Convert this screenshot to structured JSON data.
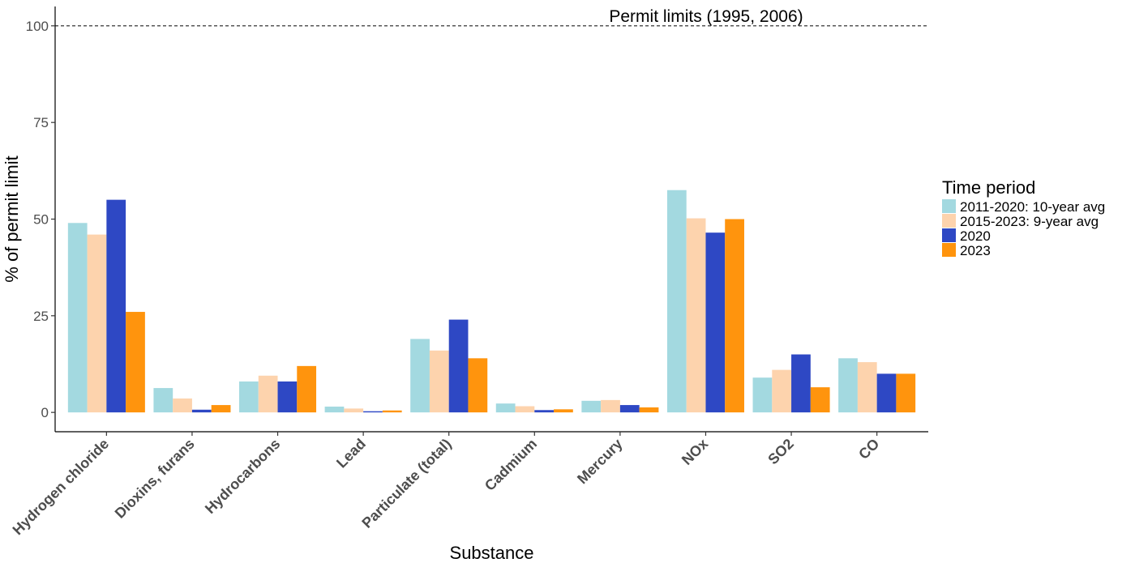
{
  "chart_data": {
    "type": "bar",
    "title": "",
    "xlabel": "Substance",
    "ylabel": "% of permit limit",
    "ylim": [
      -5,
      105
    ],
    "yticks": [
      0,
      25,
      50,
      75,
      100
    ],
    "grid": false,
    "legend_position": "right",
    "legend_title": "Time period",
    "categories": [
      "Hydrogen chloride",
      "Dioxins, furans",
      "Hydrocarbons",
      "Lead",
      "Particulate (total)",
      "Cadmium",
      "Mercury",
      "NOx",
      "SO2",
      "CO"
    ],
    "series": [
      {
        "name": "2011-2020: 10-year avg",
        "color": "#a3d9e0",
        "values": [
          49,
          6.3,
          8,
          1.5,
          19,
          2.3,
          3,
          57.5,
          9,
          14
        ]
      },
      {
        "name": "2015-2023: 9-year avg",
        "color": "#fdd3ad",
        "values": [
          46,
          3.6,
          9.5,
          1,
          16,
          1.6,
          3.2,
          50.2,
          11,
          13
        ]
      },
      {
        "name": "2020",
        "color": "#2e48c4",
        "values": [
          55,
          0.7,
          8,
          0.3,
          24,
          0.6,
          1.9,
          46.5,
          15,
          10
        ]
      },
      {
        "name": "2023",
        "color": "#ff940d",
        "values": [
          26,
          1.9,
          12,
          0.5,
          14,
          0.8,
          1.3,
          50,
          6.5,
          10
        ]
      }
    ],
    "reference_line": {
      "value": 100,
      "style": "dashed",
      "label": "Permit limits (1995, 2006)"
    }
  }
}
